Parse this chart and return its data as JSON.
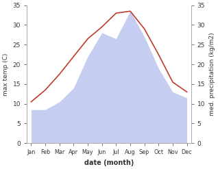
{
  "months": [
    "Jan",
    "Feb",
    "Mar",
    "Apr",
    "May",
    "Jun",
    "Jul",
    "Aug",
    "Sep",
    "Oct",
    "Nov",
    "Dec"
  ],
  "month_indices": [
    1,
    2,
    3,
    4,
    5,
    6,
    7,
    8,
    9,
    10,
    11,
    12
  ],
  "temperature": [
    10.5,
    13.5,
    17.5,
    22.0,
    26.5,
    29.5,
    33.0,
    33.5,
    29.0,
    22.5,
    15.5,
    13.0
  ],
  "precipitation": [
    8.5,
    8.5,
    10.5,
    14.0,
    22.0,
    28.0,
    26.5,
    33.5,
    27.0,
    19.0,
    13.0,
    11.5
  ],
  "temp_color": "#c0392b",
  "precip_color": "#c5cef0",
  "background_color": "#ffffff",
  "ylim_left": [
    0,
    35
  ],
  "ylim_right": [
    0,
    35
  ],
  "yticks_left": [
    0,
    5,
    10,
    15,
    20,
    25,
    30,
    35
  ],
  "yticks_right": [
    0,
    5,
    10,
    15,
    20,
    25,
    30,
    35
  ],
  "xlabel": "date (month)",
  "ylabel_left": "max temp (C)",
  "ylabel_right": "med. precipitation (kg/m2)",
  "figsize": [
    3.18,
    2.47
  ],
  "dpi": 100
}
